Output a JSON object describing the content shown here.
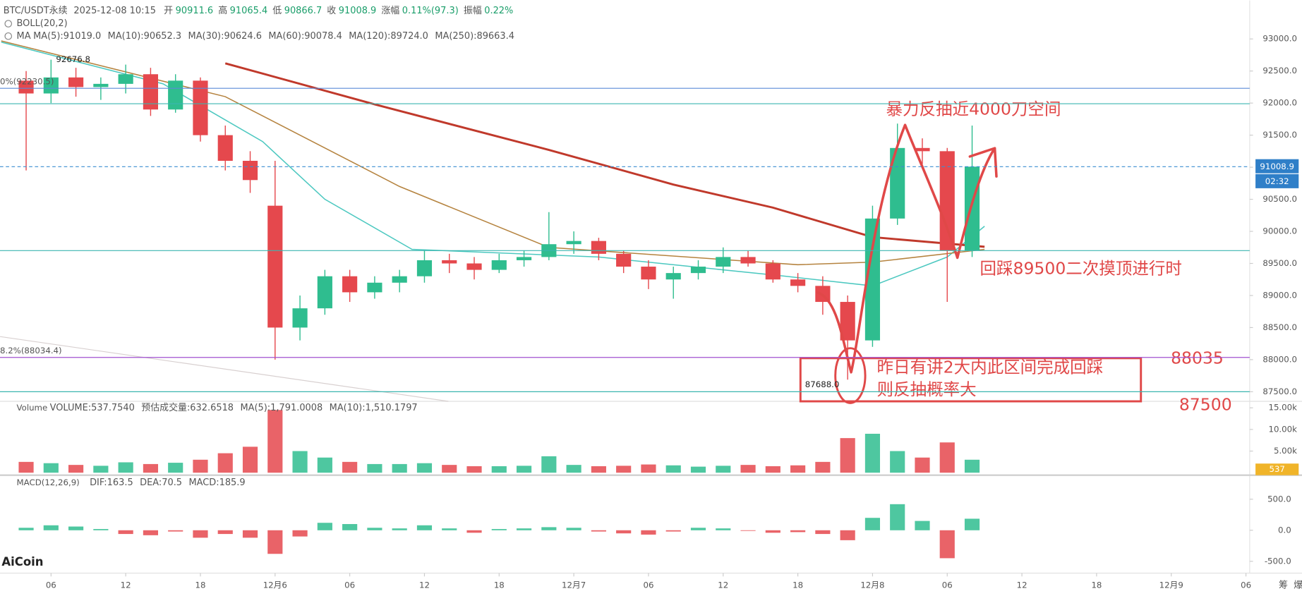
{
  "header": {
    "symbol": "BTC/USDT永续",
    "time": "2025-12-08 10:15",
    "quote": [
      {
        "label": "开",
        "value": "90911.6"
      },
      {
        "label": "高",
        "value": "91065.4"
      },
      {
        "label": "低",
        "value": "90866.7"
      },
      {
        "label": "收",
        "value": "91008.9"
      },
      {
        "label": "涨幅",
        "value": "0.11%(97.3)"
      },
      {
        "label": "振幅",
        "value": "0.22%"
      }
    ],
    "boll": "BOLL(20,2)",
    "ma_label": "MA"
  },
  "chart_data": {
    "type": "candlestick",
    "x": [
      4,
      6,
      8,
      10,
      12,
      14,
      16,
      18,
      20,
      22,
      24,
      26,
      28,
      30,
      32,
      34,
      36,
      38,
      40,
      42,
      44,
      46,
      48,
      50,
      52,
      54,
      56,
      58,
      60,
      62,
      64,
      66,
      68,
      70,
      72,
      74,
      76,
      78,
      80
    ],
    "open": [
      92350,
      92150,
      92400,
      92250,
      92300,
      92450,
      91900,
      92350,
      91500,
      91100,
      90400,
      88500,
      88800,
      89300,
      89050,
      89200,
      89300,
      89550,
      89500,
      89400,
      89550,
      89600,
      89800,
      89850,
      89650,
      89450,
      89250,
      89350,
      89450,
      89600,
      89500,
      89250,
      89150,
      88900,
      88300,
      90200,
      91300,
      91250,
      89700
    ],
    "high": [
      92500,
      92676.8,
      92550,
      92400,
      92600,
      92550,
      92450,
      92400,
      91650,
      91250,
      91100,
      89000,
      89400,
      89400,
      89300,
      89400,
      89700,
      89650,
      89600,
      89650,
      89700,
      90300,
      90000,
      89900,
      89700,
      89550,
      89450,
      89550,
      89750,
      89700,
      89550,
      89350,
      89300,
      89000,
      90400,
      91680,
      91450,
      91300,
      91650
    ],
    "low": [
      90950,
      92000,
      92100,
      92050,
      92150,
      91800,
      91850,
      91400,
      90950,
      90600,
      88000,
      88300,
      88700,
      88900,
      88950,
      89050,
      89200,
      89350,
      89250,
      89350,
      89450,
      89550,
      89650,
      89550,
      89350,
      89100,
      88950,
      89250,
      89350,
      89450,
      89200,
      89050,
      88700,
      87688,
      88200,
      90100,
      91050,
      88900,
      89600
    ],
    "close": [
      92150,
      92400,
      92250,
      92300,
      92450,
      91900,
      92350,
      91500,
      91100,
      90800,
      88500,
      88800,
      89300,
      89050,
      89200,
      89300,
      89550,
      89500,
      89400,
      89550,
      89600,
      89800,
      89850,
      89650,
      89450,
      89250,
      89350,
      89450,
      89600,
      89500,
      89250,
      89150,
      88900,
      88300,
      90200,
      91300,
      91250,
      89700,
      91008.9
    ],
    "low_labels": [
      null,
      null,
      null,
      null,
      null,
      null,
      null,
      null,
      null,
      null,
      null,
      null,
      null,
      null,
      null,
      null,
      null,
      null,
      null,
      null,
      null,
      null,
      null,
      null,
      null,
      null,
      null,
      null,
      null,
      null,
      null,
      null,
      null,
      "87688.0",
      null,
      null,
      null,
      null,
      null
    ],
    "up_color": "#2fbd8f",
    "down_color": "#e5484d",
    "xlim": [
      1.9,
      102.3
    ],
    "xticks": [
      {
        "value": 6,
        "label": "06"
      },
      {
        "value": 12,
        "label": "12"
      },
      {
        "value": 18,
        "label": "18"
      },
      {
        "value": 24,
        "label": "12月6"
      },
      {
        "value": 30,
        "label": "06"
      },
      {
        "value": 36,
        "label": "12"
      },
      {
        "value": 42,
        "label": "18"
      },
      {
        "value": 48,
        "label": "12月7"
      },
      {
        "value": 54,
        "label": "06"
      },
      {
        "value": 60,
        "label": "12"
      },
      {
        "value": 66,
        "label": "18"
      },
      {
        "value": 72,
        "label": "12月8"
      },
      {
        "value": 78,
        "label": "06"
      },
      {
        "value": 84,
        "label": "12"
      },
      {
        "value": 90,
        "label": "18"
      },
      {
        "value": 96,
        "label": "12月9"
      },
      {
        "value": 102,
        "label": "06"
      }
    ],
    "ylim": [
      87350,
      93600
    ],
    "yticks": [
      {
        "value": 93000,
        "label": "93000.0"
      },
      {
        "value": 92500,
        "label": "92500.0"
      },
      {
        "value": 92000,
        "label": "92000.0"
      },
      {
        "value": 91500,
        "label": "91500.0"
      },
      {
        "value": 91000,
        "label": "91000.0"
      },
      {
        "value": 90500,
        "label": "90500.0"
      },
      {
        "value": 90000,
        "label": "90000.0"
      },
      {
        "value": 89500,
        "label": "89500.0"
      },
      {
        "value": 89000,
        "label": "89000.0"
      },
      {
        "value": 88500,
        "label": "88500.0"
      },
      {
        "value": 88000,
        "label": "88000.0"
      },
      {
        "value": 87500,
        "label": "87500.0"
      }
    ],
    "grid": false,
    "ma_series": [
      {
        "name": "MA(5):91019.0",
        "color": "#2c4fa8"
      },
      {
        "name": "MA(10):90652.3",
        "color": "#a8323c"
      },
      {
        "name": "MA(30):90624.6",
        "color": "#e58fb0"
      },
      {
        "name": "MA(60):90078.4",
        "color": "#4cc8c0",
        "x": [
          2,
          15,
          23,
          28,
          35,
          50,
          65,
          72,
          78,
          81
        ],
        "values": [
          92950,
          92300,
          91400,
          90500,
          89720,
          89600,
          89300,
          89150,
          89600,
          90080
        ]
      },
      {
        "name": "MA(120):89724.0",
        "color": "#b5833f",
        "x": [
          2,
          20,
          34,
          46,
          66,
          72,
          81
        ],
        "values": [
          92970,
          92100,
          90700,
          89750,
          89480,
          89520,
          89720
        ]
      },
      {
        "name": "MA(250):89663.4",
        "color": "#c0392b",
        "x": [
          20,
          32,
          46,
          56,
          64,
          72,
          81
        ],
        "values": [
          92620,
          91980,
          91270,
          90730,
          90370,
          89910,
          89760
        ]
      }
    ],
    "hlines": [
      {
        "value": 92230.5,
        "color": "#5b8ad8"
      },
      {
        "value": 91990,
        "color": "#3bb6b0"
      },
      {
        "value": 89700,
        "color": "#3bb6b0"
      },
      {
        "value": 88034.4,
        "color": "#a050d0"
      },
      {
        "value": 87500,
        "color": "#3bb6b0"
      }
    ],
    "fib_labels": [
      "0%(92230.5)",
      "8.2%(88034.4)"
    ],
    "countdown": "02:32",
    "volume": {
      "title": "Volume",
      "legend": [
        {
          "text": "VOLUME:537.7540",
          "color": "#555"
        },
        {
          "text": "预估成交量:632.6518",
          "color": "#555"
        },
        {
          "text": "MA(5):1,791.0008",
          "color": "#2fae8a"
        },
        {
          "text": "MA(10):1,510.1797",
          "color": "#d9a600"
        }
      ],
      "values": [
        2500,
        2200,
        1800,
        1600,
        2400,
        2000,
        2300,
        3000,
        4500,
        6000,
        14500,
        5000,
        3500,
        2500,
        2000,
        2000,
        2200,
        1800,
        1500,
        1500,
        1600,
        3800,
        1800,
        1500,
        1600,
        1900,
        1700,
        1400,
        1600,
        1800,
        1500,
        1700,
        2500,
        8000,
        9000,
        5000,
        3500,
        7000,
        3000
      ],
      "ylim": [
        0,
        16500
      ],
      "yticks": [
        {
          "value": 5000,
          "label": "5.00k"
        },
        {
          "value": 10000,
          "label": "10.00k"
        },
        {
          "value": 15000,
          "label": "15.00k"
        }
      ],
      "marker": "537"
    },
    "macd": {
      "title": "MACD(12,26,9)",
      "legend": [
        {
          "text": "DIF:163.5",
          "color": "#2fae8a"
        },
        {
          "text": "DEA:70.5",
          "color": "#e0a000"
        },
        {
          "text": "MACD:185.9",
          "color": "#3a6fd0"
        }
      ],
      "values": [
        40,
        80,
        60,
        20,
        -60,
        -80,
        -20,
        -120,
        -60,
        -120,
        -380,
        -100,
        120,
        100,
        40,
        30,
        80,
        30,
        -40,
        20,
        30,
        50,
        40,
        -20,
        -50,
        -70,
        -20,
        40,
        30,
        -10,
        -40,
        -30,
        -60,
        -160,
        200,
        420,
        150,
        -450,
        185.9
      ],
      "ylim": [
        -690,
        860
      ],
      "yticks": [
        {
          "value": 500,
          "label": "500.0"
        },
        {
          "value": 0,
          "label": "0.0"
        },
        {
          "value": -500,
          "label": "-500.0"
        }
      ]
    }
  },
  "annotations": {
    "rebound": "暴力反抽近4000刀空间",
    "retest": "回踩89500二次摸顶进行时",
    "note_line1": "昨日有讲2大内此区间完成回踩",
    "note_line2": "则反抽概率大",
    "level_high": "88035",
    "level_low": "87500"
  },
  "brand": "AiCoin",
  "toolbar": [
    "筹",
    "爆"
  ]
}
